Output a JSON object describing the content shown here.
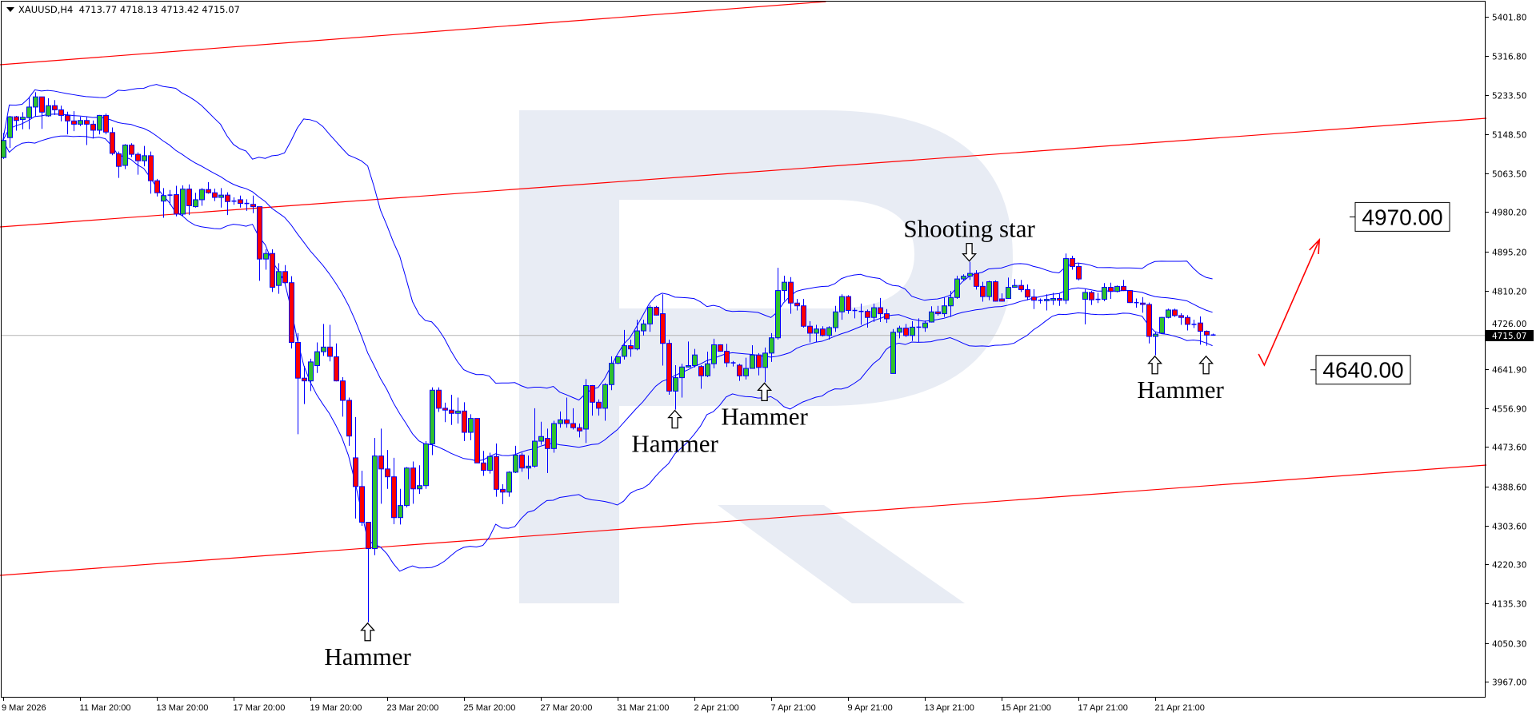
{
  "header": {
    "symbol": "XAUUSD,H4",
    "ohlc": "4713.77 4718.13 4713.42 4715.07"
  },
  "colors": {
    "bull": "#2fc12f",
    "bear": "#ff0000",
    "outline": "#0000ff",
    "bands": "#0000ff",
    "trend": "#ff0000",
    "watermark": "#e8ecf4",
    "price_line": "#b4b4b4"
  },
  "chart_data": {
    "type": "candlestick",
    "symbol": "XAUUSD",
    "timeframe": "H4",
    "ylim": [
      3967.0,
      5401.8
    ],
    "grid": false,
    "price_ticks": [
      "5401.80",
      "5316.80",
      "5233.50",
      "5148.50",
      "5063.50",
      "4980.20",
      "4895.20",
      "4810.20",
      "4726.00",
      "4641.90",
      "4556.90",
      "4473.60",
      "4388.60",
      "4303.60",
      "4220.30",
      "4135.30",
      "4050.30",
      "3967.00"
    ],
    "current_price": "4715.07",
    "time_labels": [
      "9 Mar 2026",
      "11 Mar 20:00",
      "13 Mar 20:00",
      "17 Mar 20:00",
      "19 Mar 20:00",
      "23 Mar 20:00",
      "25 Mar 20:00",
      "27 Mar 20:00",
      "31 Mar 21:00",
      "2 Apr 21:00",
      "7 Apr 21:00",
      "9 Apr 21:00",
      "13 Apr 21:00",
      "15 Apr 21:00",
      "17 Apr 21:00",
      "21 Apr 21:00"
    ],
    "time_label_every": 12,
    "indicator": {
      "type": "bollinger",
      "period": 20,
      "deviations": 2
    },
    "candles": [
      [
        5098,
        5151,
        5095,
        5135
      ],
      [
        5141,
        5188,
        5119,
        5186
      ],
      [
        5186,
        5188,
        5156,
        5178
      ],
      [
        5180,
        5196,
        5159,
        5185
      ],
      [
        5184,
        5229,
        5159,
        5207
      ],
      [
        5207,
        5239,
        5186,
        5229
      ],
      [
        5229,
        5229,
        5160,
        5196
      ],
      [
        5188,
        5226,
        5186,
        5210
      ],
      [
        5210,
        5222,
        5190,
        5201
      ],
      [
        5201,
        5210,
        5176,
        5189
      ],
      [
        5189,
        5197,
        5148,
        5177
      ],
      [
        5177,
        5198,
        5155,
        5170
      ],
      [
        5170,
        5186,
        5166,
        5178
      ],
      [
        5178,
        5186,
        5125,
        5170
      ],
      [
        5170,
        5178,
        5139,
        5157
      ],
      [
        5157,
        5190,
        5148,
        5189
      ],
      [
        5189,
        5193,
        5148,
        5153
      ],
      [
        5152,
        5163,
        5103,
        5107
      ],
      [
        5106,
        5111,
        5054,
        5079
      ],
      [
        5081,
        5127,
        5073,
        5125
      ],
      [
        5125,
        5129,
        5099,
        5105
      ],
      [
        5105,
        5109,
        5061,
        5091
      ],
      [
        5091,
        5123,
        5079,
        5102
      ],
      [
        5102,
        5111,
        5020,
        5048
      ],
      [
        5048,
        5052,
        5014,
        5022
      ],
      [
        5004,
        5032,
        4968,
        5016
      ],
      [
        5016,
        5028,
        4996,
        5017
      ],
      [
        5018,
        5037,
        4971,
        4976
      ],
      [
        4976,
        5038,
        4972,
        5030
      ],
      [
        5030,
        5040,
        4974,
        4994
      ],
      [
        4992,
        5022,
        4990,
        5007
      ],
      [
        5007,
        5032,
        4994,
        5029
      ],
      [
        5029,
        5045,
        5020,
        5022
      ],
      [
        5022,
        5031,
        5004,
        5012
      ],
      [
        5012,
        5032,
        4990,
        5017
      ],
      [
        5017,
        5023,
        4974,
        5003
      ],
      [
        5004,
        5012,
        4996,
        5004
      ],
      [
        5007,
        5016,
        4990,
        4999
      ],
      [
        4999,
        5008,
        4983,
        4999
      ],
      [
        4997,
        5016,
        4978,
        4992
      ],
      [
        4992,
        4992,
        4832,
        4879
      ],
      [
        4879,
        4900,
        4856,
        4891
      ],
      [
        4891,
        4900,
        4808,
        4818
      ],
      [
        4822,
        4870,
        4804,
        4852
      ],
      [
        4852,
        4866,
        4826,
        4828
      ],
      [
        4828,
        4842,
        4686,
        4699
      ],
      [
        4699,
        4719,
        4501,
        4622
      ],
      [
        4622,
        4648,
        4566,
        4616
      ],
      [
        4616,
        4664,
        4594,
        4657
      ],
      [
        4649,
        4699,
        4633,
        4679
      ],
      [
        4679,
        4739,
        4670,
        4689
      ],
      [
        4689,
        4737,
        4658,
        4669
      ],
      [
        4668,
        4697,
        4615,
        4616
      ],
      [
        4616,
        4624,
        4539,
        4574
      ],
      [
        4574,
        4580,
        4476,
        4497
      ],
      [
        4450,
        4538,
        4319,
        4388
      ],
      [
        4388,
        4422,
        4303,
        4311
      ],
      [
        4311,
        4311,
        4095,
        4254
      ],
      [
        4254,
        4493,
        4240,
        4454
      ],
      [
        4454,
        4513,
        4351,
        4426
      ],
      [
        4426,
        4467,
        4383,
        4409
      ],
      [
        4409,
        4450,
        4307,
        4321
      ],
      [
        4321,
        4383,
        4306,
        4347
      ],
      [
        4347,
        4430,
        4343,
        4428
      ],
      [
        4428,
        4442,
        4351,
        4383
      ],
      [
        4383,
        4434,
        4372,
        4390
      ],
      [
        4390,
        4486,
        4383,
        4480
      ],
      [
        4480,
        4602,
        4456,
        4596
      ],
      [
        4596,
        4602,
        4549,
        4557
      ],
      [
        4557,
        4569,
        4527,
        4553
      ],
      [
        4553,
        4586,
        4521,
        4546
      ],
      [
        4546,
        4580,
        4524,
        4551
      ],
      [
        4551,
        4570,
        4486,
        4505
      ],
      [
        4505,
        4544,
        4488,
        4535
      ],
      [
        4535,
        4535,
        4439,
        4439
      ],
      [
        4439,
        4465,
        4411,
        4423
      ],
      [
        4423,
        4461,
        4416,
        4453
      ],
      [
        4453,
        4481,
        4366,
        4382
      ],
      [
        4382,
        4393,
        4350,
        4376
      ],
      [
        4376,
        4421,
        4366,
        4419
      ],
      [
        4419,
        4476,
        4417,
        4456
      ],
      [
        4456,
        4461,
        4420,
        4428
      ],
      [
        4428,
        4455,
        4404,
        4432
      ],
      [
        4432,
        4557,
        4429,
        4486
      ],
      [
        4486,
        4528,
        4478,
        4496
      ],
      [
        4492,
        4513,
        4417,
        4470
      ],
      [
        4470,
        4530,
        4461,
        4524
      ],
      [
        4524,
        4550,
        4515,
        4532
      ],
      [
        4532,
        4580,
        4515,
        4524
      ],
      [
        4524,
        4557,
        4511,
        4515
      ],
      [
        4515,
        4524,
        4494,
        4508
      ],
      [
        4512,
        4620,
        4482,
        4606
      ],
      [
        4606,
        4607,
        4541,
        4570
      ],
      [
        4570,
        4576,
        4541,
        4557
      ],
      [
        4557,
        4611,
        4530,
        4608
      ],
      [
        4608,
        4669,
        4596,
        4654
      ],
      [
        4654,
        4670,
        4652,
        4668
      ],
      [
        4669,
        4726,
        4662,
        4692
      ],
      [
        4692,
        4705,
        4668,
        4685
      ],
      [
        4685,
        4748,
        4682,
        4724
      ],
      [
        4724,
        4748,
        4714,
        4739
      ],
      [
        4739,
        4780,
        4722,
        4775
      ],
      [
        4775,
        4778,
        4757,
        4758
      ],
      [
        4761,
        4803,
        4649,
        4697
      ],
      [
        4697,
        4705,
        4586,
        4594
      ],
      [
        4594,
        4650,
        4554,
        4623
      ],
      [
        4623,
        4653,
        4580,
        4646
      ],
      [
        4646,
        4701,
        4645,
        4649
      ],
      [
        4649,
        4685,
        4645,
        4672
      ],
      [
        4647,
        4650,
        4599,
        4627
      ],
      [
        4627,
        4679,
        4624,
        4653
      ],
      [
        4653,
        4707,
        4643,
        4694
      ],
      [
        4694,
        4695,
        4679,
        4680
      ],
      [
        4680,
        4696,
        4646,
        4655
      ],
      [
        4655,
        4659,
        4647,
        4653
      ],
      [
        4650,
        4653,
        4616,
        4627
      ],
      [
        4627,
        4666,
        4619,
        4643
      ],
      [
        4643,
        4693,
        4643,
        4672
      ],
      [
        4672,
        4676,
        4628,
        4645
      ],
      [
        4645,
        4688,
        4613,
        4676
      ],
      [
        4676,
        4719,
        4657,
        4709
      ],
      [
        4709,
        4860,
        4705,
        4811
      ],
      [
        4811,
        4843,
        4789,
        4829
      ],
      [
        4829,
        4840,
        4761,
        4784
      ],
      [
        4784,
        4793,
        4768,
        4778
      ],
      [
        4778,
        4793,
        4731,
        4734
      ],
      [
        4734,
        4745,
        4699,
        4719
      ],
      [
        4719,
        4737,
        4699,
        4728
      ],
      [
        4728,
        4734,
        4712,
        4714
      ],
      [
        4714,
        4734,
        4705,
        4731
      ],
      [
        4731,
        4778,
        4722,
        4765
      ],
      [
        4765,
        4803,
        4748,
        4798
      ],
      [
        4798,
        4801,
        4761,
        4768
      ],
      [
        4768,
        4774,
        4751,
        4766
      ],
      [
        4766,
        4783,
        4737,
        4766
      ],
      [
        4766,
        4770,
        4731,
        4753
      ],
      [
        4753,
        4783,
        4743,
        4774
      ],
      [
        4774,
        4795,
        4743,
        4761
      ],
      [
        4761,
        4771,
        4741,
        4750
      ],
      [
        4632,
        4728,
        4632,
        4721
      ],
      [
        4721,
        4735,
        4708,
        4730
      ],
      [
        4730,
        4739,
        4711,
        4714
      ],
      [
        4714,
        4745,
        4702,
        4732
      ],
      [
        4732,
        4751,
        4699,
        4731
      ],
      [
        4731,
        4746,
        4722,
        4741
      ],
      [
        4743,
        4777,
        4742,
        4765
      ],
      [
        4765,
        4778,
        4757,
        4761
      ],
      [
        4761,
        4797,
        4754,
        4778
      ],
      [
        4778,
        4810,
        4754,
        4796
      ],
      [
        4796,
        4843,
        4793,
        4836
      ],
      [
        4836,
        4846,
        4833,
        4842
      ],
      [
        4842,
        4873,
        4834,
        4848
      ],
      [
        4848,
        4855,
        4813,
        4820
      ],
      [
        4820,
        4830,
        4787,
        4798
      ],
      [
        4798,
        4832,
        4790,
        4830
      ],
      [
        4830,
        4833,
        4787,
        4788
      ],
      [
        4793,
        4805,
        4787,
        4788
      ],
      [
        4794,
        4839,
        4793,
        4818
      ],
      [
        4818,
        4836,
        4817,
        4822
      ],
      [
        4822,
        4834,
        4808,
        4813
      ],
      [
        4813,
        4824,
        4790,
        4797
      ],
      [
        4797,
        4814,
        4771,
        4790
      ],
      [
        4790,
        4794,
        4783,
        4789
      ],
      [
        4789,
        4803,
        4768,
        4792
      ],
      [
        4790,
        4806,
        4780,
        4794
      ],
      [
        4794,
        4804,
        4778,
        4790
      ],
      [
        4790,
        4891,
        4782,
        4880
      ],
      [
        4880,
        4886,
        4856,
        4863
      ],
      [
        4863,
        4870,
        4833,
        4836
      ],
      [
        4792,
        4814,
        4738,
        4807
      ],
      [
        4807,
        4810,
        4780,
        4791
      ],
      [
        4791,
        4806,
        4784,
        4792
      ],
      [
        4792,
        4827,
        4788,
        4818
      ],
      [
        4818,
        4828,
        4793,
        4809
      ],
      [
        4809,
        4822,
        4807,
        4820
      ],
      [
        4820,
        4834,
        4810,
        4811
      ],
      [
        4811,
        4811,
        4784,
        4785
      ],
      [
        4785,
        4794,
        4774,
        4784
      ],
      [
        4784,
        4797,
        4763,
        4781
      ],
      [
        4781,
        4785,
        4697,
        4712
      ],
      [
        4712,
        4722,
        4671,
        4717
      ],
      [
        4719,
        4754,
        4717,
        4753
      ],
      [
        4753,
        4772,
        4751,
        4769
      ],
      [
        4769,
        4772,
        4754,
        4757
      ],
      [
        4757,
        4762,
        4737,
        4753
      ],
      [
        4753,
        4758,
        4725,
        4738
      ],
      [
        4738,
        4748,
        4730,
        4738
      ],
      [
        4741,
        4755,
        4694,
        4723
      ],
      [
        4723,
        4725,
        4692,
        4715
      ],
      [
        4713.77,
        4718.13,
        4713.42,
        4715.07
      ]
    ],
    "trend_lines": [
      {
        "from": [
          -0.45,
          5298.3
        ],
        "to": [
          128.6,
          5434.6
        ]
      },
      {
        "from": [
          -0.45,
          4948.3
        ],
        "to": [
          231.8,
          5182.8
        ]
      },
      {
        "from": [
          -0.45,
          4196.4
        ],
        "to": [
          231.8,
          4434.4
        ]
      }
    ],
    "forecast_path": [
      [
        196.2,
        4674.1
      ],
      [
        197.1,
        4650.0
      ],
      [
        205.7,
        4920.7
      ]
    ],
    "targets": [
      {
        "label": "4970.00",
        "price": 4970.0
      },
      {
        "label": "4640.00",
        "price": 4640.0
      }
    ],
    "annotations": [
      {
        "label": "Hammer",
        "direction": "up",
        "candles": [
          57
        ]
      },
      {
        "label": "Hammer",
        "direction": "up",
        "candles": [
          105
        ]
      },
      {
        "label": "Hammer",
        "direction": "up",
        "candles": [
          119
        ]
      },
      {
        "label": "Shooting star",
        "direction": "down",
        "candles": [
          151
        ]
      },
      {
        "label": "Hammer",
        "direction": "up",
        "candles": [
          180,
          188
        ]
      }
    ]
  }
}
